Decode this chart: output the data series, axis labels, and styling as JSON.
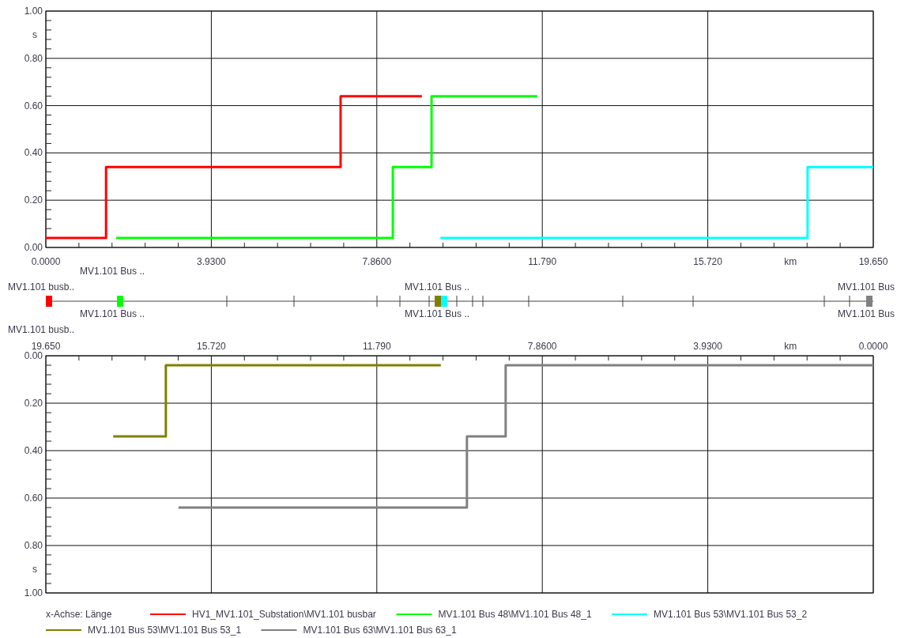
{
  "chart_data": [
    {
      "type": "step",
      "xlabel": "km",
      "ylabel": "s",
      "xlim": [
        0,
        19.65
      ],
      "xticks": [
        {
          "value": 0,
          "label": "0.0000"
        },
        {
          "value": 3.93,
          "label": "3.9300"
        },
        {
          "value": 7.86,
          "label": "7.8600"
        },
        {
          "value": 11.79,
          "label": "11.790"
        },
        {
          "value": 15.72,
          "label": "15.720"
        },
        {
          "value": 19.65,
          "label": "19.650"
        }
      ],
      "ylim": [
        0,
        1
      ],
      "yticks": [
        {
          "value": 0,
          "label": "0.00"
        },
        {
          "value": 0.2,
          "label": "0.20"
        },
        {
          "value": 0.4,
          "label": "0.40"
        },
        {
          "value": 0.6,
          "label": "0.60"
        },
        {
          "value": 0.8,
          "label": "0.80"
        },
        {
          "value": 1,
          "label": "1.00"
        }
      ],
      "grid": true,
      "legend": "bottom",
      "line_style": "solid",
      "marker": "none",
      "annotations": [
        "MV1.101 Bus ..",
        "MV1.101 busb..",
        "MV1.101 Bus ..",
        "MV1.101 Bus",
        "MV1.101 Bus ..",
        "MV1.101 Bus ..",
        "MV1.101 Bus",
        "MV1.101 busb..",
        "x-Achse:  Länge"
      ],
      "series": [
        {
          "name": "HV1_MV1.101_Substation\\MV1.101 busbar",
          "color": "#ff0000",
          "x": [
            0,
            1.43,
            7.0,
            8.93
          ],
          "values": [
            0.04,
            0.34,
            0.64,
            0.64
          ]
        },
        {
          "name": "MV1.101 Bus 48\\MV1.101 Bus 48_1",
          "color": "#00ff00",
          "x": [
            1.67,
            8.24,
            9.16,
            11.67
          ],
          "values": [
            0.04,
            0.34,
            0.64,
            0.64
          ]
        },
        {
          "name": "MV1.101 Bus 53\\MV1.101 Bus 53_2",
          "color": "#00ffff",
          "x": [
            9.37,
            18.09,
            19.65
          ],
          "values": [
            0.04,
            0.34,
            0.34
          ]
        }
      ]
    },
    {
      "type": "step",
      "xlabel": "km",
      "ylabel": "s",
      "xlim": [
        19.65,
        0
      ],
      "xticks": [
        {
          "value": 19.65,
          "label": "19.650"
        },
        {
          "value": 15.72,
          "label": "15.720"
        },
        {
          "value": 11.79,
          "label": "11.790"
        },
        {
          "value": 7.86,
          "label": "7.8600"
        },
        {
          "value": 3.93,
          "label": "3.9300"
        },
        {
          "value": 0,
          "label": "0.0000"
        }
      ],
      "ylim": [
        1,
        0
      ],
      "yticks": [
        {
          "value": 0,
          "label": "0.00"
        },
        {
          "value": 0.2,
          "label": "0.20"
        },
        {
          "value": 0.4,
          "label": "0.40"
        },
        {
          "value": 0.6,
          "label": "0.60"
        },
        {
          "value": 0.8,
          "label": "0.80"
        },
        {
          "value": 1,
          "label": "1.00"
        }
      ],
      "grid": true,
      "legend": "bottom",
      "line_style": "solid",
      "marker": "none",
      "series": [
        {
          "name": "MV1.101 Bus 53\\MV1.101 Bus 53_1",
          "color": "#808000",
          "x": [
            18.05,
            16.8,
            10.27
          ],
          "values": [
            0.34,
            0.04,
            0.04
          ]
        },
        {
          "name": "MV1.101 Bus 63\\MV1.101 Bus 63_1",
          "color": "#808080",
          "x": [
            16.5,
            9.65,
            8.73,
            0
          ],
          "values": [
            0.64,
            0.34,
            0.04,
            0.04
          ]
        }
      ]
    }
  ]
}
